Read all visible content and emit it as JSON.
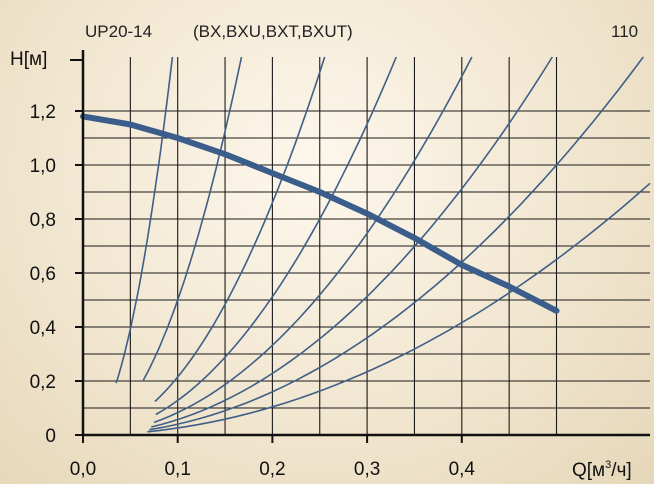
{
  "header": {
    "model": "UP20-14",
    "variants": "(BX,BXU,BXT,BXUT)",
    "code": "110"
  },
  "chart_data": {
    "type": "line",
    "title": "UP20-14 (BX,BXU,BXT,BXUT)",
    "ylabel": "H[м]",
    "xlabel": "Q[м³/ч]",
    "xlim": [
      0,
      0.5
    ],
    "ylim": [
      0,
      1.25
    ],
    "x_ticks": [
      0,
      0.1,
      0.2,
      0.3,
      0.4
    ],
    "x_tick_labels": [
      "0,0",
      "0,1",
      "0,2",
      "0,3",
      "0,4"
    ],
    "y_ticks": [
      0,
      0.2,
      0.4,
      0.6,
      0.8,
      1.0,
      1.2
    ],
    "y_tick_labels": [
      "0",
      "0,2",
      "0,4",
      "0,6",
      "0,8",
      "1,0",
      "1,2"
    ],
    "grid": true,
    "colors": {
      "curve": "#3a5d8c",
      "system": "#3f5f86",
      "grid": "#1a1a1a"
    },
    "pump_curve": {
      "x": [
        0,
        0.05,
        0.1,
        0.15,
        0.2,
        0.25,
        0.3,
        0.35,
        0.4,
        0.45,
        0.5
      ],
      "y": [
        1.18,
        1.15,
        1.1,
        1.04,
        0.97,
        0.9,
        0.82,
        0.73,
        0.63,
        0.55,
        0.46
      ]
    },
    "system_curves": [
      {
        "k": 157,
        "x_start": 0.035
      },
      {
        "k": 50,
        "x_start": 0.063
      },
      {
        "k": 21.5,
        "x_start": 0.076
      },
      {
        "k": 12.8,
        "x_start": 0.077
      },
      {
        "k": 8.3,
        "x_start": 0.075
      },
      {
        "k": 5.7,
        "x_start": 0.072
      },
      {
        "k": 4.0,
        "x_start": 0.07
      },
      {
        "k": 2.6,
        "x_start": 0.068
      }
    ]
  }
}
